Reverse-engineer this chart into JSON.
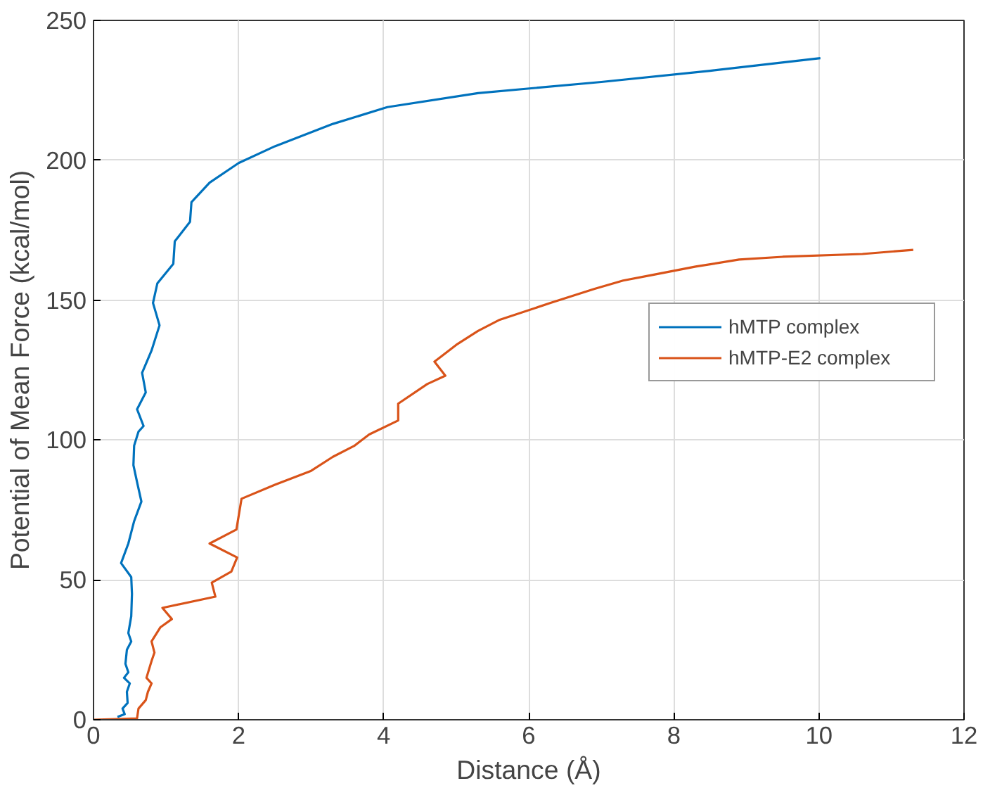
{
  "chart_data": {
    "type": "line",
    "xlabel": "Distance (Å)",
    "ylabel": "Potential of Mean Force (kcal/mol)",
    "xlim": [
      0,
      12
    ],
    "ylim": [
      0,
      250
    ],
    "xticks": [
      0,
      2,
      4,
      6,
      8,
      10,
      12
    ],
    "yticks": [
      0,
      50,
      100,
      150,
      200,
      250
    ],
    "grid": true,
    "legend": "right",
    "line_style": "solid",
    "series": [
      {
        "name": "hMTP complex",
        "color": "#0072bd",
        "x": [
          0.33,
          0.43,
          0.4,
          0.47,
          0.46,
          0.5,
          0.42,
          0.48,
          0.44,
          0.46,
          0.52,
          0.48,
          0.52,
          0.53,
          0.52,
          0.38,
          0.48,
          0.56,
          0.66,
          0.6,
          0.55,
          0.56,
          0.62,
          0.69,
          0.6,
          0.72,
          0.67,
          0.8,
          0.91,
          0.82,
          0.88,
          1.1,
          1.12,
          1.33,
          1.35,
          1.6,
          2.0,
          2.5,
          3.3,
          4.05,
          5.3,
          7.0,
          8.5,
          10.02
        ],
        "values": [
          1,
          2,
          4,
          6,
          10,
          13,
          15,
          17,
          20,
          25,
          28,
          31,
          37,
          45,
          51,
          56,
          63,
          71,
          78,
          85,
          91,
          98,
          103,
          105,
          111,
          117,
          124,
          132,
          141,
          149,
          156,
          163,
          171,
          178,
          185,
          192,
          199,
          205,
          213,
          219,
          224,
          228,
          232,
          236.5
        ]
      },
      {
        "name": "hMTP-E2 complex",
        "color": "#d95319",
        "x": [
          0,
          0.6,
          0.62,
          0.72,
          0.75,
          0.8,
          0.73,
          0.8,
          0.84,
          0.8,
          0.92,
          1.08,
          0.95,
          1.68,
          1.63,
          1.9,
          1.98,
          1.6,
          1.97,
          2.04,
          2.5,
          3.0,
          3.3,
          3.6,
          3.8,
          4.2,
          4.2,
          4.6,
          4.85,
          4.7,
          5.0,
          5.3,
          5.6,
          6.3,
          6.9,
          7.3,
          7.7,
          8.3,
          8.9,
          9.5,
          10.6,
          11.3
        ],
        "values": [
          0,
          0.5,
          4,
          7,
          10,
          13,
          15,
          21,
          24,
          28,
          33,
          36,
          40,
          44,
          49,
          53,
          58,
          63,
          68,
          79,
          84,
          89,
          94,
          98,
          102,
          107,
          113,
          120,
          123,
          128,
          134,
          139,
          143,
          149,
          154,
          157,
          159,
          162,
          164.5,
          165.5,
          166.5,
          168
        ]
      }
    ]
  }
}
